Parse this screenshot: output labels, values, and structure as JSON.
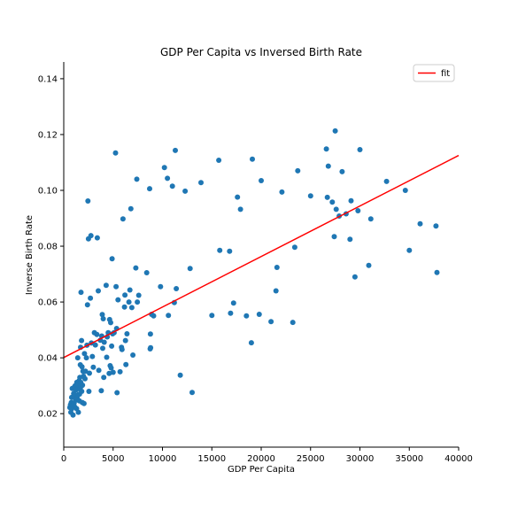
{
  "chart_data": {
    "type": "scatter",
    "title": "GDP Per Capita vs Inversed Birth Rate",
    "xlabel": "GDP Per Capita",
    "ylabel": "Inverse Birth Rate",
    "xlim": [
      0,
      40000
    ],
    "ylim": [
      0.008,
      0.146
    ],
    "xticks": [
      0,
      5000,
      10000,
      15000,
      20000,
      25000,
      30000,
      35000,
      40000
    ],
    "yticks": [
      0.02,
      0.04,
      0.06,
      0.08,
      0.1,
      0.12,
      0.14
    ],
    "ytick_labels": [
      "0.02",
      "0.04",
      "0.06",
      "0.08",
      "0.10",
      "0.12",
      "0.14"
    ],
    "grid": false,
    "legend": {
      "position": "top-right",
      "entries": [
        "fit"
      ]
    },
    "colors": {
      "points": "#1f77b4",
      "fit": "#ff0000",
      "axes": "#000000"
    },
    "fit_line": {
      "name": "fit",
      "x": [
        0,
        40000
      ],
      "y": [
        0.0401,
        0.1125
      ]
    },
    "points": [
      [
        620,
        0.0222
      ],
      [
        680,
        0.0232
      ],
      [
        720,
        0.0205
      ],
      [
        760,
        0.024
      ],
      [
        800,
        0.0258
      ],
      [
        820,
        0.0218
      ],
      [
        860,
        0.029
      ],
      [
        900,
        0.023
      ],
      [
        940,
        0.0195
      ],
      [
        980,
        0.0262
      ],
      [
        1000,
        0.0272
      ],
      [
        1050,
        0.0238
      ],
      [
        1080,
        0.0295
      ],
      [
        1120,
        0.0224
      ],
      [
        1150,
        0.03
      ],
      [
        1200,
        0.0248
      ],
      [
        1250,
        0.0285
      ],
      [
        1300,
        0.0218
      ],
      [
        1320,
        0.0312
      ],
      [
        1350,
        0.0256
      ],
      [
        1400,
        0.0302
      ],
      [
        1420,
        0.04
      ],
      [
        1450,
        0.0268
      ],
      [
        1480,
        0.0205
      ],
      [
        1520,
        0.0292
      ],
      [
        1550,
        0.0318
      ],
      [
        1580,
        0.0246
      ],
      [
        1600,
        0.027
      ],
      [
        1630,
        0.033
      ],
      [
        1650,
        0.0288
      ],
      [
        1680,
        0.0375
      ],
      [
        1700,
        0.0438
      ],
      [
        1720,
        0.0312
      ],
      [
        1750,
        0.0635
      ],
      [
        1780,
        0.0298
      ],
      [
        1800,
        0.0462
      ],
      [
        1820,
        0.028
      ],
      [
        1850,
        0.0368
      ],
      [
        1880,
        0.024
      ],
      [
        1900,
        0.0302
      ],
      [
        1950,
        0.0352
      ],
      [
        2000,
        0.0334
      ],
      [
        2050,
        0.0236
      ],
      [
        2100,
        0.0415
      ],
      [
        2150,
        0.0325
      ],
      [
        2200,
        0.0352
      ],
      [
        2300,
        0.04
      ],
      [
        2350,
        0.0445
      ],
      [
        2400,
        0.059
      ],
      [
        2450,
        0.0962
      ],
      [
        2500,
        0.0826
      ],
      [
        2550,
        0.028
      ],
      [
        2600,
        0.0345
      ],
      [
        2700,
        0.0614
      ],
      [
        2750,
        0.0838
      ],
      [
        2800,
        0.0453
      ],
      [
        2900,
        0.0405
      ],
      [
        3000,
        0.0366
      ],
      [
        3100,
        0.049
      ],
      [
        3200,
        0.0446
      ],
      [
        3350,
        0.0484
      ],
      [
        3400,
        0.083
      ],
      [
        3500,
        0.064
      ],
      [
        3550,
        0.0355
      ],
      [
        3700,
        0.0463
      ],
      [
        3800,
        0.0282
      ],
      [
        3850,
        0.0478
      ],
      [
        3900,
        0.0555
      ],
      [
        3950,
        0.0434
      ],
      [
        4000,
        0.054
      ],
      [
        4050,
        0.033
      ],
      [
        4100,
        0.0456
      ],
      [
        4300,
        0.066
      ],
      [
        4350,
        0.0402
      ],
      [
        4400,
        0.0475
      ],
      [
        4500,
        0.049
      ],
      [
        4600,
        0.0344
      ],
      [
        4650,
        0.0537
      ],
      [
        4700,
        0.0372
      ],
      [
        4750,
        0.0526
      ],
      [
        4800,
        0.0364
      ],
      [
        4850,
        0.0442
      ],
      [
        4900,
        0.0755
      ],
      [
        4950,
        0.0486
      ],
      [
        5000,
        0.0348
      ],
      [
        5100,
        0.049
      ],
      [
        5250,
        0.1134
      ],
      [
        5300,
        0.0655
      ],
      [
        5350,
        0.0505
      ],
      [
        5400,
        0.0275
      ],
      [
        5500,
        0.0608
      ],
      [
        5700,
        0.035
      ],
      [
        5850,
        0.0438
      ],
      [
        5900,
        0.043
      ],
      [
        6000,
        0.0898
      ],
      [
        6150,
        0.0582
      ],
      [
        6200,
        0.0625
      ],
      [
        6250,
        0.0462
      ],
      [
        6300,
        0.0376
      ],
      [
        6400,
        0.0486
      ],
      [
        6600,
        0.06
      ],
      [
        6700,
        0.0643
      ],
      [
        6800,
        0.0934
      ],
      [
        6900,
        0.058
      ],
      [
        7000,
        0.041
      ],
      [
        7300,
        0.0722
      ],
      [
        7400,
        0.104
      ],
      [
        7450,
        0.06
      ],
      [
        7600,
        0.0624
      ],
      [
        8400,
        0.0705
      ],
      [
        8700,
        0.1006
      ],
      [
        8750,
        0.0432
      ],
      [
        8780,
        0.0485
      ],
      [
        8800,
        0.0436
      ],
      [
        8900,
        0.0556
      ],
      [
        9100,
        0.055
      ],
      [
        9800,
        0.0655
      ],
      [
        10200,
        0.1082
      ],
      [
        10500,
        0.1043
      ],
      [
        10600,
        0.0552
      ],
      [
        11000,
        0.1015
      ],
      [
        11200,
        0.0598
      ],
      [
        11300,
        0.1143
      ],
      [
        11400,
        0.0648
      ],
      [
        11800,
        0.0338
      ],
      [
        12300,
        0.0997
      ],
      [
        12800,
        0.072
      ],
      [
        13000,
        0.0276
      ],
      [
        13900,
        0.1028
      ],
      [
        15000,
        0.0552
      ],
      [
        15700,
        0.1108
      ],
      [
        15800,
        0.0785
      ],
      [
        16800,
        0.0782
      ],
      [
        16900,
        0.056
      ],
      [
        17200,
        0.0596
      ],
      [
        17600,
        0.0976
      ],
      [
        17900,
        0.0932
      ],
      [
        18500,
        0.055
      ],
      [
        19000,
        0.0454
      ],
      [
        19100,
        0.1112
      ],
      [
        19800,
        0.0556
      ],
      [
        20000,
        0.1035
      ],
      [
        21000,
        0.053
      ],
      [
        21500,
        0.064
      ],
      [
        21600,
        0.0724
      ],
      [
        22100,
        0.0994
      ],
      [
        23200,
        0.0527
      ],
      [
        23400,
        0.0796
      ],
      [
        23700,
        0.107
      ],
      [
        25000,
        0.098
      ],
      [
        26600,
        0.1148
      ],
      [
        26700,
        0.0975
      ],
      [
        26800,
        0.1087
      ],
      [
        27200,
        0.0958
      ],
      [
        27400,
        0.0834
      ],
      [
        27500,
        0.1213
      ],
      [
        27600,
        0.0932
      ],
      [
        27900,
        0.0908
      ],
      [
        28200,
        0.1067
      ],
      [
        28600,
        0.0916
      ],
      [
        29000,
        0.0825
      ],
      [
        29100,
        0.0963
      ],
      [
        29500,
        0.069
      ],
      [
        29800,
        0.0927
      ],
      [
        30000,
        0.1146
      ],
      [
        30900,
        0.0731
      ],
      [
        31100,
        0.0898
      ],
      [
        32700,
        0.1032
      ],
      [
        34600,
        0.1
      ],
      [
        35000,
        0.0785
      ],
      [
        36100,
        0.088
      ],
      [
        37700,
        0.0872
      ],
      [
        37800,
        0.0706
      ]
    ]
  }
}
